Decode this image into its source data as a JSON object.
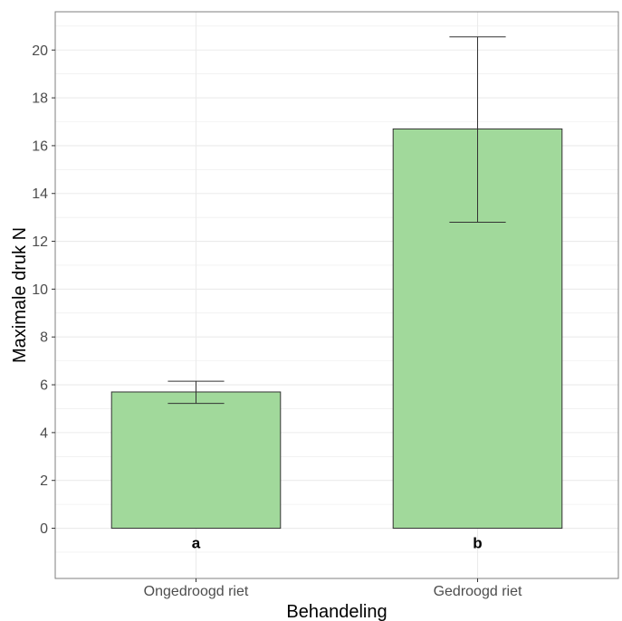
{
  "chart_data": {
    "type": "bar",
    "categories": [
      "Ongedroogd riet",
      "Gedroogd riet"
    ],
    "values": [
      5.7,
      16.7
    ],
    "error_low": [
      5.22,
      12.8
    ],
    "error_high": [
      6.15,
      20.55
    ],
    "group_labels": [
      "a",
      "b"
    ],
    "xlabel": "Behandeling",
    "ylabel": "Maximale druk N",
    "ylim": [
      -2.1,
      21.6
    ],
    "yticks": [
      0,
      2,
      4,
      6,
      8,
      10,
      12,
      14,
      16,
      18,
      20
    ],
    "ytick_labels": [
      "0",
      "2",
      "4",
      "6",
      "8",
      "10",
      "12",
      "14",
      "16",
      "18",
      "20"
    ],
    "grid": true,
    "legend": "none",
    "colors": {
      "bar_fill": "#a1d99b",
      "bar_stroke": "#333333",
      "grid": "#ebebeb",
      "panel_border": "#7f7f7f"
    }
  }
}
